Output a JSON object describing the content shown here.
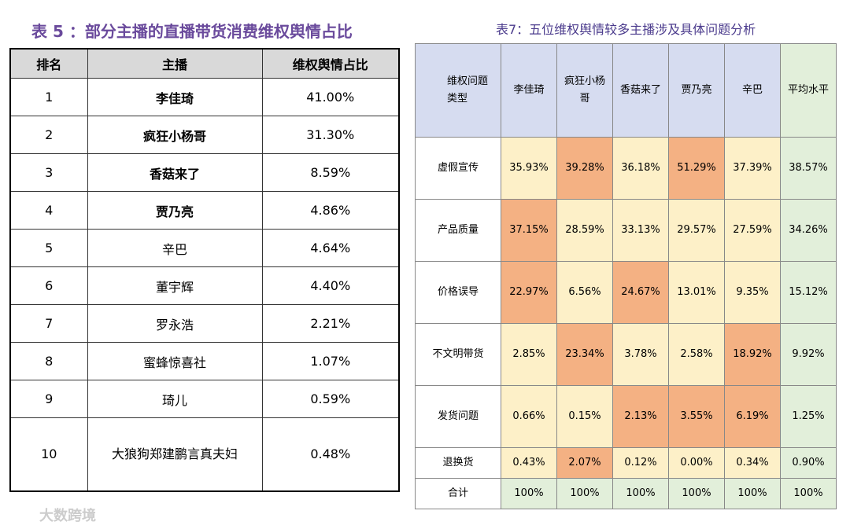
{
  "left": {
    "title": "表 5 ：部分主播的直播带货消费维权舆情占比",
    "headers": [
      "排名",
      "主播",
      "维权舆情占比"
    ],
    "rows": [
      [
        "1",
        "李佳琦",
        "41.00%"
      ],
      [
        "2",
        "疯狂小杨哥",
        "31.30%"
      ],
      [
        "3",
        "香菇来了",
        "8.59%"
      ],
      [
        "4",
        "贾乃亮",
        "4.86%"
      ],
      [
        "5",
        "辛巴",
        "4.64%"
      ],
      [
        "6",
        "董宇辉",
        "4.40%"
      ],
      [
        "7",
        "罗永浩",
        "2.21%"
      ],
      [
        "8",
        "蜜蜂惊喜社",
        "1.07%"
      ],
      [
        "9",
        "琦儿",
        "0.59%"
      ],
      [
        "10",
        "大狼狗郑建鹏言真夫妇",
        "0.48%"
      ]
    ]
  },
  "right": {
    "title": "表7：五位维权舆情较多主播涉及具体问题分析",
    "headers": [
      "维权问题类型",
      "李佳琦",
      "疯狂小杨哥",
      "香菇来了",
      "贾乃亮",
      "辛巴",
      "平均水平"
    ],
    "highlight_color": "#f4b183",
    "cell_color": "#fdf0c8",
    "average_color": "#e2efda",
    "header_color": "#d6dcf0",
    "rows": [
      {
        "label": "虚假宣传",
        "values": [
          "35.93%",
          "39.28%",
          "36.18%",
          "51.29%",
          "37.39%",
          "38.57%"
        ],
        "highlighted": [
          false,
          true,
          false,
          true,
          false
        ]
      },
      {
        "label": "产品质量",
        "values": [
          "37.15%",
          "28.59%",
          "33.13%",
          "29.57%",
          "27.59%",
          "34.26%"
        ],
        "highlighted": [
          true,
          false,
          false,
          false,
          false
        ]
      },
      {
        "label": "价格误导",
        "values": [
          "22.97%",
          "6.56%",
          "24.67%",
          "13.01%",
          "9.35%",
          "15.12%"
        ],
        "highlighted": [
          true,
          false,
          true,
          false,
          false
        ]
      },
      {
        "label": "不文明带货",
        "values": [
          "2.85%",
          "23.34%",
          "3.78%",
          "2.58%",
          "18.92%",
          "9.92%"
        ],
        "highlighted": [
          false,
          true,
          false,
          false,
          true
        ]
      },
      {
        "label": "发货问题",
        "values": [
          "0.66%",
          "0.15%",
          "2.13%",
          "3.55%",
          "6.19%",
          "1.25%"
        ],
        "highlighted": [
          false,
          false,
          true,
          true,
          true
        ]
      },
      {
        "label": "退换货",
        "values": [
          "0.43%",
          "2.07%",
          "0.12%",
          "0.00%",
          "0.34%",
          "0.90%"
        ],
        "highlighted": [
          false,
          true,
          false,
          false,
          false
        ]
      },
      {
        "label": "合计",
        "values": [
          "100%",
          "100%",
          "100%",
          "100%",
          "100%",
          "100%"
        ],
        "highlighted": [
          false,
          false,
          false,
          false,
          false
        ],
        "total": true
      }
    ]
  },
  "watermark": "大数跨境"
}
